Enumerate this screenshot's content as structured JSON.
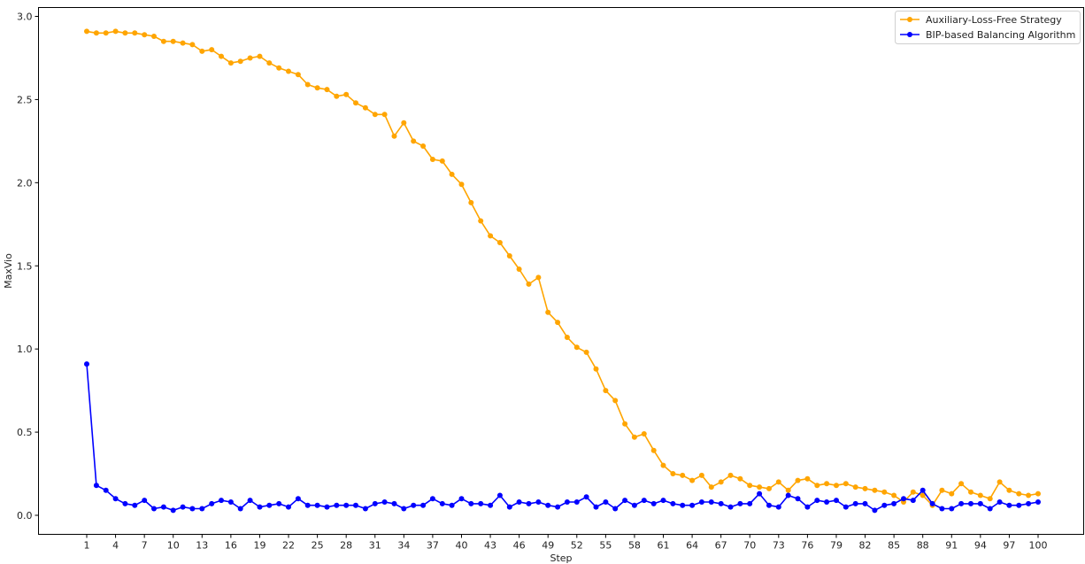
{
  "chart_data": {
    "type": "line",
    "xlabel": "Step",
    "ylabel": "MaxVio",
    "xlim": [
      1,
      100
    ],
    "ylim": [
      -0.12,
      3.05
    ],
    "x_ticks": [
      "1",
      "4",
      "7",
      "10",
      "13",
      "16",
      "19",
      "22",
      "25",
      "28",
      "31",
      "34",
      "37",
      "40",
      "43",
      "46",
      "49",
      "52",
      "55",
      "58",
      "61",
      "64",
      "67",
      "70",
      "73",
      "76",
      "79",
      "82",
      "85",
      "88",
      "91",
      "94",
      "97",
      "100"
    ],
    "y_ticks": [
      "0.0",
      "0.5",
      "1.0",
      "1.5",
      "2.0",
      "2.5",
      "3.0"
    ],
    "legend_position": "top-right",
    "grid": false,
    "series": [
      {
        "name": "Auxiliary-Loss-Free Strategy",
        "color": "#ffa500",
        "x": [
          1,
          2,
          3,
          4,
          5,
          6,
          7,
          8,
          9,
          10,
          11,
          12,
          13,
          14,
          15,
          16,
          17,
          18,
          19,
          20,
          21,
          22,
          23,
          24,
          25,
          26,
          27,
          28,
          29,
          30,
          31,
          32,
          33,
          34,
          35,
          36,
          37,
          38,
          39,
          40,
          41,
          42,
          43,
          44,
          45,
          46,
          47,
          48,
          49,
          50,
          51,
          52,
          53,
          54,
          55,
          56,
          57,
          58,
          59,
          60,
          61,
          62,
          63,
          64,
          65,
          66,
          67,
          68,
          69,
          70,
          71,
          72,
          73,
          74,
          75,
          76,
          77,
          78,
          79,
          80,
          81,
          82,
          83,
          84,
          85,
          86,
          87,
          88,
          89,
          90,
          91,
          92,
          93,
          94,
          95,
          96,
          97,
          98,
          99,
          100
        ],
        "values": [
          2.91,
          2.9,
          2.9,
          2.91,
          2.9,
          2.9,
          2.89,
          2.88,
          2.85,
          2.85,
          2.84,
          2.83,
          2.79,
          2.8,
          2.76,
          2.72,
          2.73,
          2.75,
          2.76,
          2.72,
          2.69,
          2.67,
          2.65,
          2.59,
          2.57,
          2.56,
          2.52,
          2.53,
          2.48,
          2.45,
          2.41,
          2.41,
          2.28,
          2.36,
          2.25,
          2.22,
          2.14,
          2.13,
          2.05,
          1.99,
          1.88,
          1.77,
          1.68,
          1.64,
          1.56,
          1.48,
          1.39,
          1.43,
          1.22,
          1.16,
          1.07,
          1.01,
          0.98,
          0.88,
          0.75,
          0.69,
          0.55,
          0.47,
          0.49,
          0.39,
          0.3,
          0.25,
          0.24,
          0.21,
          0.24,
          0.17,
          0.2,
          0.24,
          0.22,
          0.18,
          0.17,
          0.16,
          0.2,
          0.15,
          0.21,
          0.22,
          0.18,
          0.19,
          0.18,
          0.19,
          0.17,
          0.16,
          0.15,
          0.14,
          0.12,
          0.08,
          0.14,
          0.12,
          0.06,
          0.15,
          0.13,
          0.19,
          0.14,
          0.12,
          0.1,
          0.2,
          0.15,
          0.13,
          0.12,
          0.13
        ]
      },
      {
        "name": "BIP-based Balancing Algorithm",
        "color": "#0000ff",
        "x": [
          1,
          2,
          3,
          4,
          5,
          6,
          7,
          8,
          9,
          10,
          11,
          12,
          13,
          14,
          15,
          16,
          17,
          18,
          19,
          20,
          21,
          22,
          23,
          24,
          25,
          26,
          27,
          28,
          29,
          30,
          31,
          32,
          33,
          34,
          35,
          36,
          37,
          38,
          39,
          40,
          41,
          42,
          43,
          44,
          45,
          46,
          47,
          48,
          49,
          50,
          51,
          52,
          53,
          54,
          55,
          56,
          57,
          58,
          59,
          60,
          61,
          62,
          63,
          64,
          65,
          66,
          67,
          68,
          69,
          70,
          71,
          72,
          73,
          74,
          75,
          76,
          77,
          78,
          79,
          80,
          81,
          82,
          83,
          84,
          85,
          86,
          87,
          88,
          89,
          90,
          91,
          92,
          93,
          94,
          95,
          96,
          97,
          98,
          99,
          100
        ],
        "values": [
          0.91,
          0.18,
          0.15,
          0.1,
          0.07,
          0.06,
          0.09,
          0.04,
          0.05,
          0.03,
          0.05,
          0.04,
          0.04,
          0.07,
          0.09,
          0.08,
          0.04,
          0.09,
          0.05,
          0.06,
          0.07,
          0.05,
          0.1,
          0.06,
          0.06,
          0.05,
          0.06,
          0.06,
          0.06,
          0.04,
          0.07,
          0.08,
          0.07,
          0.04,
          0.06,
          0.06,
          0.1,
          0.07,
          0.06,
          0.1,
          0.07,
          0.07,
          0.06,
          0.12,
          0.05,
          0.08,
          0.07,
          0.08,
          0.06,
          0.05,
          0.08,
          0.08,
          0.11,
          0.05,
          0.08,
          0.04,
          0.09,
          0.06,
          0.09,
          0.07,
          0.09,
          0.07,
          0.06,
          0.06,
          0.08,
          0.08,
          0.07,
          0.05,
          0.07,
          0.07,
          0.13,
          0.06,
          0.05,
          0.12,
          0.1,
          0.05,
          0.09,
          0.08,
          0.09,
          0.05,
          0.07,
          0.07,
          0.03,
          0.06,
          0.07,
          0.1,
          0.09,
          0.15,
          0.07,
          0.04,
          0.04,
          0.07,
          0.07,
          0.07,
          0.04,
          0.08,
          0.06,
          0.06,
          0.07,
          0.08
        ]
      }
    ]
  }
}
